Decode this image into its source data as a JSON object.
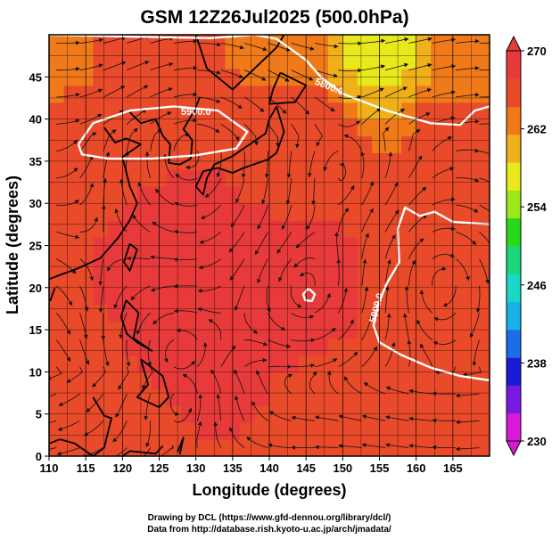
{
  "chart_data": {
    "type": "heatmap",
    "title": "GSM 12Z26Jul2025 (500.0hPa)",
    "xlabel": "Longitude (degrees)",
    "ylabel": "Latitude  (degrees)",
    "xlim": [
      110,
      170
    ],
    "ylim": [
      0,
      50
    ],
    "xticks": [
      110,
      115,
      120,
      125,
      130,
      135,
      140,
      145,
      150,
      155,
      160,
      165
    ],
    "yticks": [
      0,
      5,
      10,
      15,
      20,
      25,
      30,
      35,
      40,
      45
    ],
    "grid": true,
    "overlay": "streamlines",
    "colorbar": {
      "min": 230,
      "max": 270,
      "ticks": [
        230,
        238,
        246,
        254,
        262,
        270
      ],
      "colors": [
        "#d81ad8",
        "#7a1ae0",
        "#1a1ad8",
        "#1a6ee8",
        "#1ab0e8",
        "#1ad8c8",
        "#1ad87a",
        "#2ad81a",
        "#9ae81a",
        "#e8e81a",
        "#f0b01a",
        "#f07a1a",
        "#e84a2a",
        "#e83a3a"
      ]
    },
    "field_samples": [
      {
        "lon": 112,
        "lat": 48,
        "value": 264
      },
      {
        "lon": 125,
        "lat": 48,
        "value": 266
      },
      {
        "lon": 140,
        "lat": 48,
        "value": 264
      },
      {
        "lon": 155,
        "lat": 48,
        "value": 258
      },
      {
        "lon": 168,
        "lat": 48,
        "value": 262
      },
      {
        "lon": 120,
        "lat": 38,
        "value": 267
      },
      {
        "lon": 145,
        "lat": 38,
        "value": 266
      },
      {
        "lon": 165,
        "lat": 38,
        "value": 265
      },
      {
        "lon": 130,
        "lat": 25,
        "value": 268
      },
      {
        "lon": 145,
        "lat": 19,
        "value": 269
      },
      {
        "lon": 160,
        "lat": 20,
        "value": 265
      },
      {
        "lon": 130,
        "lat": 15,
        "value": 268
      },
      {
        "lon": 150,
        "lat": 8,
        "value": 266
      },
      {
        "lon": 115,
        "lat": 3,
        "value": 265
      }
    ],
    "contours": [
      {
        "label": "5900.0",
        "value": 5900,
        "label_lon": 130,
        "label_lat": 40.5
      },
      {
        "label": "5800.0",
        "value": 5800,
        "label_lon": 148,
        "label_lat": 43.5
      },
      {
        "label": "5900.0",
        "value": 5900,
        "label_lon": 155,
        "label_lat": 17.5
      }
    ],
    "credits": [
      "Drawing by DCL (https://www.gfd-dennou.org/library/dcl/)",
      "Data from http://database.rish.kyoto-u.ac.jp/arch/jmadata/"
    ]
  }
}
